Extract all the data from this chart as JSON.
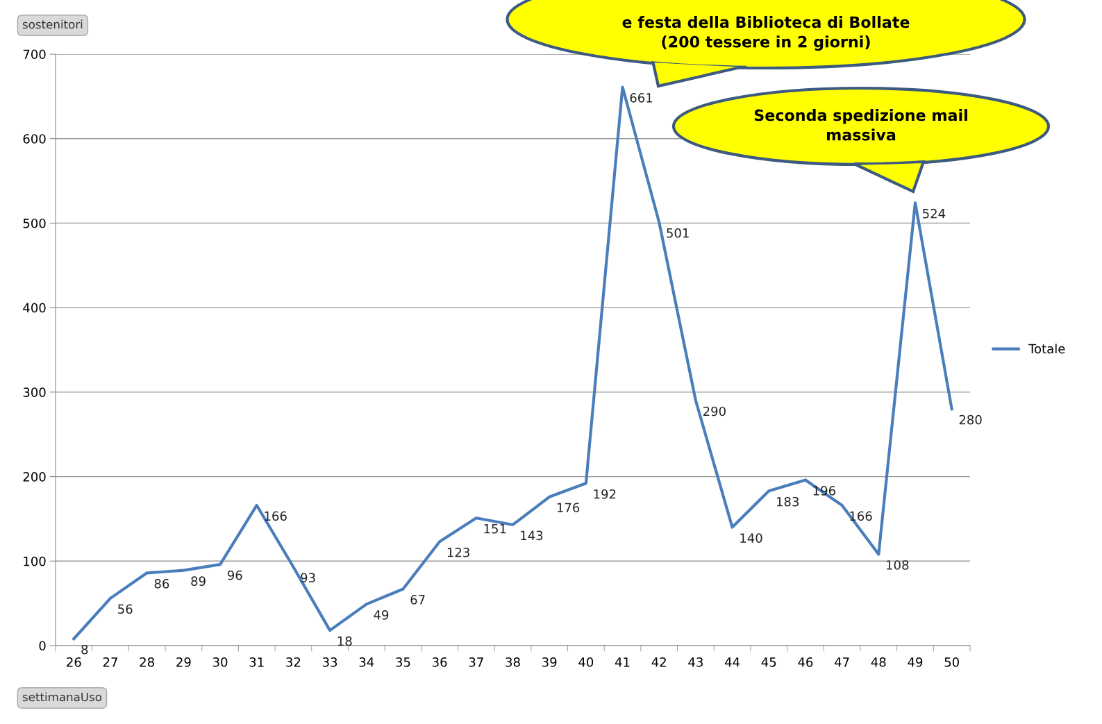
{
  "chart_data": {
    "type": "line",
    "xlabel": "settimanaUso",
    "ylabel": "sostenitori",
    "categories": [
      "26",
      "27",
      "28",
      "29",
      "30",
      "31",
      "32",
      "33",
      "34",
      "35",
      "36",
      "37",
      "38",
      "39",
      "40",
      "41",
      "42",
      "43",
      "44",
      "45",
      "46",
      "47",
      "48",
      "49",
      "50"
    ],
    "series": [
      {
        "name": "Totale",
        "color": "#4a7ebb",
        "values": [
          8,
          56,
          86,
          89,
          96,
          166,
          93,
          18,
          49,
          67,
          123,
          151,
          143,
          176,
          192,
          661,
          501,
          290,
          140,
          183,
          196,
          166,
          108,
          524,
          280
        ]
      }
    ],
    "ylim": [
      0,
      700
    ],
    "yticks": [
      0,
      100,
      200,
      300,
      400,
      500,
      600,
      700
    ],
    "grid": "y",
    "legend": "right",
    "data_labels": true,
    "marker": "none",
    "line_style": "solid",
    "annotations": [
      "e festa della Biblioteca di Bollate\n(200 tessere in 2 giorni)",
      "Seconda spedizione mail\nmassiva"
    ]
  }
}
